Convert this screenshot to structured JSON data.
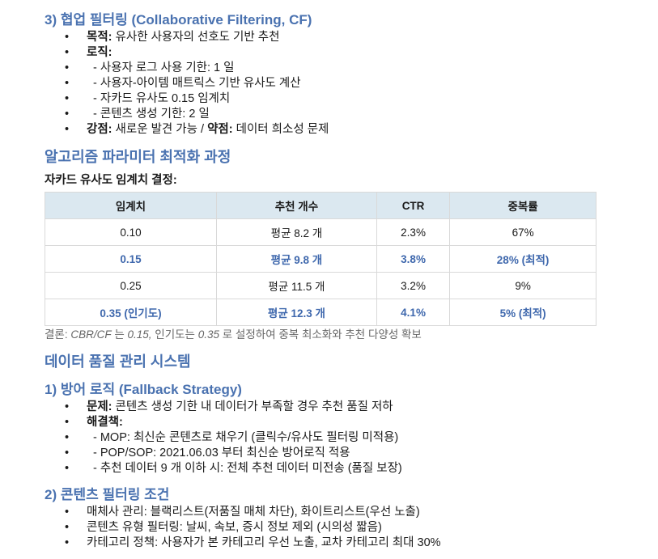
{
  "cf": {
    "title": "3) 협업 필터링 (Collaborative Filtering, CF)",
    "items": [
      {
        "bold": "목적:",
        "text": " 유사한 사용자의 선호도 기반 추천"
      },
      {
        "bold": "로직:",
        "text": ""
      },
      {
        "text": "- 사용자 로그 사용 기한: 1 일"
      },
      {
        "text": "- 사용자-아이템 매트릭스 기반 유사도 계산"
      },
      {
        "text": "- 자카드 유사도 0.15 임계치"
      },
      {
        "text": "- 콘텐츠 생성 기한: 2 일"
      }
    ],
    "last": {
      "bold1": "강점:",
      "text1": " 새로운 발견 가능 / ",
      "bold2": "약점:",
      "text2": " 데이터 희소성 문제"
    }
  },
  "opt": {
    "title": "알고리즘 파라미터 최적화 과정",
    "subtitle": "자카드 유사도 임계치 결정:",
    "headers": [
      "임계치",
      "추천 개수",
      "CTR",
      "중복률"
    ],
    "rows": [
      [
        "0.10",
        "평균 8.2 개",
        "2.3%",
        "67%"
      ],
      [
        "0.15",
        "평균 9.8 개",
        "3.8%",
        "28% (최적)"
      ],
      [
        "0.25",
        "평균 11.5 개",
        "3.2%",
        "9%"
      ],
      [
        "0.35 (인기도)",
        "평균 12.3 개",
        "4.1%",
        "5% (최적)"
      ]
    ],
    "conclusion": {
      "a": "결론: ",
      "b": "CBR/CF",
      "c": " 는 ",
      "d": "0.15,",
      "e": " 인기도는 ",
      "f": "0.35",
      "g": " 로 설정하여 중복 최소화와 추천 다양성 확보"
    }
  },
  "quality": {
    "title": "데이터 품질 관리 시스템",
    "fallback": {
      "title": "1) 방어 로직 (Fallback Strategy)",
      "problem_bold": "문제:",
      "problem": " 콘텐츠 생성 기한 내 데이터가 부족할 경우 추천 품질 저하",
      "solution_bold": "해결책:",
      "subs": [
        "- MOP: 최신순 콘텐츠로 채우기 (클릭수/유사도 필터링 미적용)",
        "- POP/SOP: 2021.06.03 부터 최신순 방어로직 적용",
        "- 추천 데이터 9 개 이하 시: 전체 추천 데이터 미전송 (품질 보장)"
      ]
    },
    "filter": {
      "title": "2) 콘텐츠 필터링 조건",
      "items": [
        "매체사 관리: 블랙리스트(저품질 매체 차단), 화이트리스트(우선 노출)",
        "콘텐츠 유형 필터링: 날씨, 속보, 증시 정보 제외 (시의성 짧음)",
        "카테고리 정책: 사용자가 본 카테고리 우선 노출, 교차 카테고리 최대 30%"
      ]
    }
  }
}
